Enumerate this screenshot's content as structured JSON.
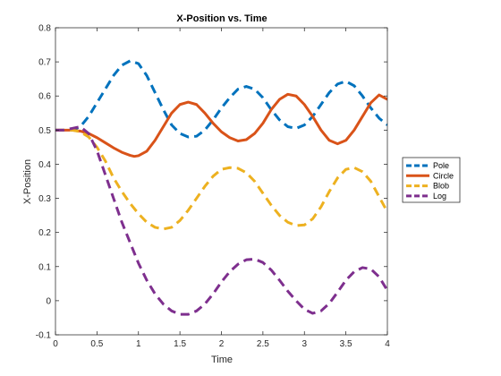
{
  "chart_data": {
    "type": "line",
    "title": "X-Position vs. Time",
    "xlabel": "Time",
    "ylabel": "X-Position",
    "xlim": [
      0,
      4
    ],
    "ylim": [
      -0.1,
      0.8
    ],
    "xticks": [
      0,
      0.5,
      1,
      1.5,
      2,
      2.5,
      3,
      3.5,
      4
    ],
    "xtick_labels": [
      "0",
      "0.5",
      "1",
      "1.5",
      "2",
      "2.5",
      "3",
      "3.5",
      "4"
    ],
    "yticks": [
      -0.1,
      0,
      0.1,
      0.2,
      0.3,
      0.4,
      0.5,
      0.6,
      0.7,
      0.8
    ],
    "ytick_labels": [
      "-0.1",
      "0",
      "0.1",
      "0.2",
      "0.3",
      "0.4",
      "0.5",
      "0.6",
      "0.7",
      "0.8"
    ],
    "grid": false,
    "legend_position": "outside-right",
    "series": [
      {
        "name": "Pole",
        "color": "#0072BD",
        "dash": "dashed",
        "points": [
          [
            0,
            0.5
          ],
          [
            0.2,
            0.5
          ],
          [
            0.3,
            0.51
          ],
          [
            0.4,
            0.54
          ],
          [
            0.5,
            0.58
          ],
          [
            0.6,
            0.62
          ],
          [
            0.7,
            0.66
          ],
          [
            0.8,
            0.69
          ],
          [
            0.9,
            0.703
          ],
          [
            1.0,
            0.695
          ],
          [
            1.1,
            0.66
          ],
          [
            1.2,
            0.61
          ],
          [
            1.3,
            0.56
          ],
          [
            1.4,
            0.515
          ],
          [
            1.5,
            0.49
          ],
          [
            1.6,
            0.48
          ],
          [
            1.7,
            0.482
          ],
          [
            1.8,
            0.5
          ],
          [
            1.9,
            0.53
          ],
          [
            2.0,
            0.565
          ],
          [
            2.1,
            0.595
          ],
          [
            2.2,
            0.62
          ],
          [
            2.3,
            0.628
          ],
          [
            2.4,
            0.62
          ],
          [
            2.5,
            0.595
          ],
          [
            2.6,
            0.56
          ],
          [
            2.7,
            0.53
          ],
          [
            2.8,
            0.51
          ],
          [
            2.9,
            0.505
          ],
          [
            3.0,
            0.515
          ],
          [
            3.1,
            0.54
          ],
          [
            3.2,
            0.575
          ],
          [
            3.3,
            0.61
          ],
          [
            3.4,
            0.635
          ],
          [
            3.5,
            0.643
          ],
          [
            3.6,
            0.63
          ],
          [
            3.7,
            0.6
          ],
          [
            3.8,
            0.565
          ],
          [
            3.9,
            0.535
          ],
          [
            4.0,
            0.515
          ]
        ]
      },
      {
        "name": "Circle",
        "color": "#D95319",
        "dash": "solid",
        "points": [
          [
            0,
            0.5
          ],
          [
            0.2,
            0.5
          ],
          [
            0.3,
            0.497
          ],
          [
            0.4,
            0.49
          ],
          [
            0.5,
            0.478
          ],
          [
            0.6,
            0.463
          ],
          [
            0.7,
            0.448
          ],
          [
            0.8,
            0.435
          ],
          [
            0.9,
            0.426
          ],
          [
            0.95,
            0.423
          ],
          [
            1.0,
            0.425
          ],
          [
            1.1,
            0.438
          ],
          [
            1.2,
            0.47
          ],
          [
            1.3,
            0.51
          ],
          [
            1.4,
            0.55
          ],
          [
            1.5,
            0.575
          ],
          [
            1.6,
            0.582
          ],
          [
            1.7,
            0.575
          ],
          [
            1.8,
            0.55
          ],
          [
            1.9,
            0.52
          ],
          [
            2.0,
            0.495
          ],
          [
            2.1,
            0.478
          ],
          [
            2.2,
            0.468
          ],
          [
            2.3,
            0.472
          ],
          [
            2.4,
            0.49
          ],
          [
            2.5,
            0.52
          ],
          [
            2.6,
            0.56
          ],
          [
            2.7,
            0.59
          ],
          [
            2.8,
            0.605
          ],
          [
            2.9,
            0.6
          ],
          [
            3.0,
            0.575
          ],
          [
            3.1,
            0.54
          ],
          [
            3.2,
            0.5
          ],
          [
            3.3,
            0.47
          ],
          [
            3.4,
            0.46
          ],
          [
            3.5,
            0.47
          ],
          [
            3.6,
            0.5
          ],
          [
            3.7,
            0.54
          ],
          [
            3.8,
            0.58
          ],
          [
            3.9,
            0.603
          ],
          [
            4.0,
            0.59
          ]
        ]
      },
      {
        "name": "Blob",
        "color": "#EDB120",
        "dash": "dashed",
        "points": [
          [
            0,
            0.5
          ],
          [
            0.2,
            0.5
          ],
          [
            0.3,
            0.495
          ],
          [
            0.4,
            0.48
          ],
          [
            0.5,
            0.45
          ],
          [
            0.6,
            0.41
          ],
          [
            0.7,
            0.36
          ],
          [
            0.8,
            0.32
          ],
          [
            0.9,
            0.285
          ],
          [
            1.0,
            0.255
          ],
          [
            1.1,
            0.23
          ],
          [
            1.2,
            0.215
          ],
          [
            1.3,
            0.21
          ],
          [
            1.4,
            0.215
          ],
          [
            1.5,
            0.235
          ],
          [
            1.6,
            0.265
          ],
          [
            1.7,
            0.3
          ],
          [
            1.8,
            0.335
          ],
          [
            1.9,
            0.365
          ],
          [
            2.0,
            0.385
          ],
          [
            2.1,
            0.39
          ],
          [
            2.2,
            0.388
          ],
          [
            2.3,
            0.375
          ],
          [
            2.4,
            0.35
          ],
          [
            2.5,
            0.315
          ],
          [
            2.6,
            0.28
          ],
          [
            2.7,
            0.25
          ],
          [
            2.8,
            0.23
          ],
          [
            2.9,
            0.22
          ],
          [
            3.0,
            0.222
          ],
          [
            3.1,
            0.24
          ],
          [
            3.2,
            0.275
          ],
          [
            3.3,
            0.32
          ],
          [
            3.4,
            0.36
          ],
          [
            3.5,
            0.385
          ],
          [
            3.6,
            0.39
          ],
          [
            3.7,
            0.378
          ],
          [
            3.8,
            0.35
          ],
          [
            3.9,
            0.305
          ],
          [
            4.0,
            0.26
          ]
        ]
      },
      {
        "name": "Log",
        "color": "#7E2F8E",
        "dash": "dashed",
        "points": [
          [
            0,
            0.5
          ],
          [
            0.1,
            0.5
          ],
          [
            0.2,
            0.505
          ],
          [
            0.3,
            0.51
          ],
          [
            0.4,
            0.49
          ],
          [
            0.5,
            0.44
          ],
          [
            0.6,
            0.37
          ],
          [
            0.7,
            0.3
          ],
          [
            0.8,
            0.23
          ],
          [
            0.9,
            0.17
          ],
          [
            1.0,
            0.11
          ],
          [
            1.1,
            0.06
          ],
          [
            1.2,
            0.02
          ],
          [
            1.3,
            -0.01
          ],
          [
            1.4,
            -0.03
          ],
          [
            1.5,
            -0.04
          ],
          [
            1.6,
            -0.04
          ],
          [
            1.7,
            -0.03
          ],
          [
            1.8,
            -0.01
          ],
          [
            1.9,
            0.02
          ],
          [
            2.0,
            0.055
          ],
          [
            2.1,
            0.085
          ],
          [
            2.2,
            0.107
          ],
          [
            2.3,
            0.12
          ],
          [
            2.4,
            0.122
          ],
          [
            2.5,
            0.112
          ],
          [
            2.6,
            0.09
          ],
          [
            2.7,
            0.06
          ],
          [
            2.8,
            0.028
          ],
          [
            2.9,
            0.0
          ],
          [
            3.0,
            -0.025
          ],
          [
            3.1,
            -0.037
          ],
          [
            3.2,
            -0.03
          ],
          [
            3.3,
            -0.008
          ],
          [
            3.4,
            0.025
          ],
          [
            3.5,
            0.06
          ],
          [
            3.6,
            0.085
          ],
          [
            3.7,
            0.097
          ],
          [
            3.8,
            0.093
          ],
          [
            3.9,
            0.07
          ],
          [
            4.0,
            0.03
          ]
        ]
      }
    ]
  }
}
